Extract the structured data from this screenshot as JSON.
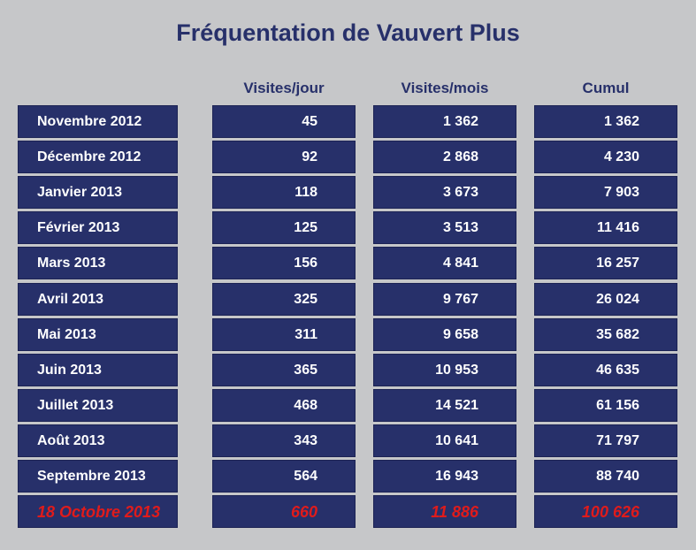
{
  "chart_data": {
    "type": "table",
    "title": "Fréquentation de Vauvert Plus",
    "columns": [
      "",
      "Visites/jour",
      "Visites/mois",
      "Cumul"
    ],
    "rows": [
      {
        "label": "Novembre 2012",
        "visites_jour": "45",
        "visites_mois": "1 362",
        "cumul": "1 362"
      },
      {
        "label": "Décembre 2012",
        "visites_jour": "92",
        "visites_mois": "2 868",
        "cumul": "4 230"
      },
      {
        "label": "Janvier 2013",
        "visites_jour": "118",
        "visites_mois": "3 673",
        "cumul": "7 903"
      },
      {
        "label": "Février 2013",
        "visites_jour": "125",
        "visites_mois": "3 513",
        "cumul": "11 416"
      },
      {
        "label": "Mars 2013",
        "visites_jour": "156",
        "visites_mois": "4 841",
        "cumul": "16 257"
      },
      {
        "label": "Avril 2013",
        "visites_jour": "325",
        "visites_mois": "9 767",
        "cumul": "26 024"
      },
      {
        "label": "Mai 2013",
        "visites_jour": "311",
        "visites_mois": "9 658",
        "cumul": "35 682"
      },
      {
        "label": "Juin 2013",
        "visites_jour": "365",
        "visites_mois": "10 953",
        "cumul": "46 635"
      },
      {
        "label": "Juillet 2013",
        "visites_jour": "468",
        "visites_mois": "14 521",
        "cumul": "61 156"
      },
      {
        "label": "Août 2013",
        "visites_jour": "343",
        "visites_mois": "10 641",
        "cumul": "71 797"
      },
      {
        "label": "Septembre 2013",
        "visites_jour": "564",
        "visites_mois": "16 943",
        "cumul": "88 740"
      },
      {
        "label": "18 Octobre 2013",
        "visites_jour": "660",
        "visites_mois": "11 886",
        "cumul": "100 626",
        "highlight": true
      }
    ]
  },
  "colors": {
    "background": "#c6c7c9",
    "cell_fill": "#27306a",
    "cell_text": "#ffffff",
    "title_text": "#27306a",
    "highlight_text": "#e01b1b"
  }
}
